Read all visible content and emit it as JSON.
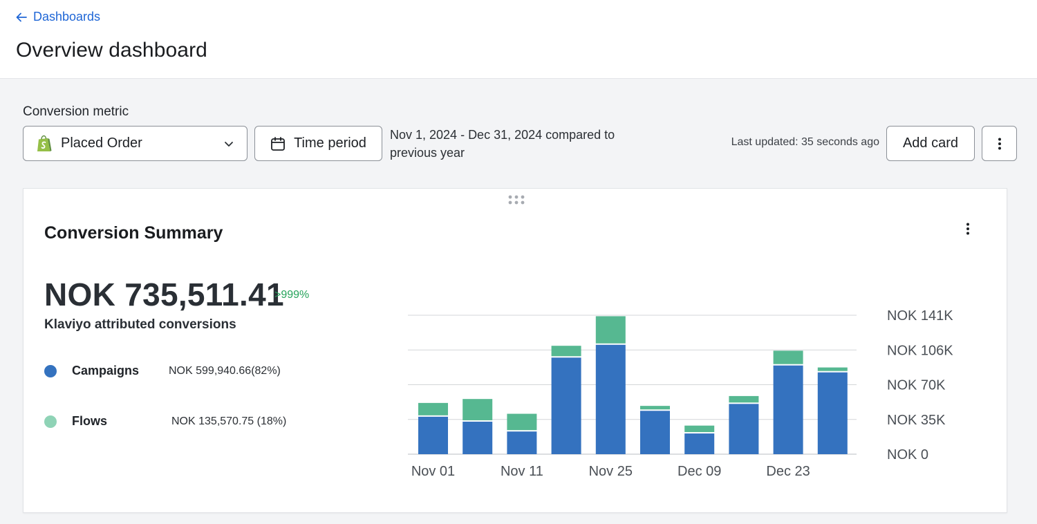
{
  "header": {
    "back_label": "Dashboards",
    "title": "Overview dashboard"
  },
  "toolbar": {
    "metric_label": "Conversion metric",
    "metric_value": "Placed Order",
    "time_button": "Time period",
    "range_text": "Nov 1, 2024 - Dec 31, 2024 compared to previous year",
    "last_updated": "Last updated: 35 seconds ago",
    "add_card": "Add card"
  },
  "card": {
    "title": "Conversion Summary",
    "total": "NOK 735,511.41",
    "change": ">999%",
    "total_label": "Klaviyo attributed conversions",
    "legend": [
      {
        "name": "Campaigns",
        "value": "NOK 599,940.66(82%)",
        "color": "#3472bf"
      },
      {
        "name": "Flows",
        "value": "NOK 135,570.75 (18%)",
        "color": "#8fd3b6"
      }
    ]
  },
  "chart_data": {
    "type": "bar",
    "stacked": true,
    "categories": [
      "",
      "",
      "",
      "",
      "",
      "",
      "",
      "",
      "",
      ""
    ],
    "x_tick_labels": [
      "Nov 01",
      "Nov 11",
      "Nov 25",
      "Dec 09",
      "Dec 23"
    ],
    "y_tick_labels": [
      "NOK 0",
      "NOK 35K",
      "NOK 70K",
      "NOK 106K",
      "NOK 141K"
    ],
    "ylim": [
      0,
      141
    ],
    "y_units": "thousand NOK",
    "series": [
      {
        "name": "Campaigns",
        "color": "#3472bf",
        "values": [
          38,
          33,
          23,
          98,
          111,
          44,
          21,
          51,
          90,
          83
        ]
      },
      {
        "name": "Flows",
        "color": "#56b891",
        "values": [
          14,
          23,
          18,
          12,
          29,
          5,
          8,
          8,
          15,
          5
        ]
      }
    ],
    "grid": true,
    "legend": "left"
  }
}
